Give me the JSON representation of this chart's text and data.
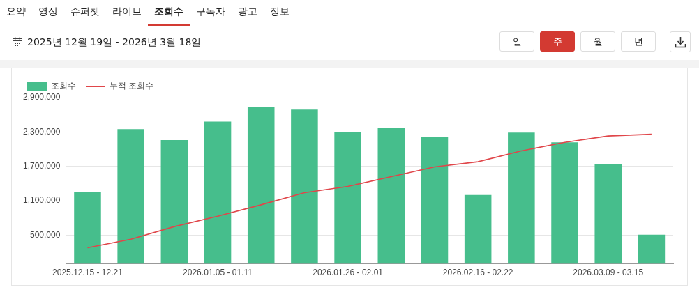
{
  "chart_data": {
    "type": "bar",
    "subtitle": "2025년 12월 19일 - 2026년 3월 18일",
    "annotations": [
      "요약",
      "영상",
      "슈퍼챗",
      "라이브",
      "조회수",
      "구독자",
      "광고",
      "정보",
      "일",
      "주",
      "월",
      "년"
    ],
    "categories": [
      "2025.12.15 - 12.21",
      null,
      null,
      "2026.01.05 - 01.11",
      null,
      null,
      "2026.01.26 - 02.01",
      null,
      null,
      "2026.02.16 - 02.22",
      null,
      null,
      "2026.03.09 - 03.15",
      null
    ],
    "series": [
      {
        "name": "조회수",
        "color": "#46be8c",
        "values": [
          1260000,
          2350000,
          2160000,
          2480000,
          2740000,
          2690000,
          2300000,
          2370000,
          2220000,
          1200000,
          2290000,
          2120000,
          1740000,
          510000
        ]
      },
      {
        "name": "누적 조회수",
        "type": "line",
        "color": "#e0464a",
        "values": [
          280000,
          430000,
          650000,
          830000,
          1030000,
          1240000,
          1350000,
          1520000,
          1690000,
          1780000,
          1970000,
          2120000,
          2230000,
          2260000
        ]
      }
    ],
    "ylim": [
      0,
      2900000
    ],
    "yticks": [
      {
        "value": 500000,
        "label": "500,000"
      },
      {
        "value": 1100000,
        "label": "1,100,000"
      },
      {
        "value": 1700000,
        "label": "1,700,000"
      },
      {
        "value": 2300000,
        "label": "2,300,000"
      },
      {
        "value": 2900000,
        "label": "2,900,000"
      }
    ],
    "grid": "y",
    "legend": "top left",
    "marker": "none",
    "line_style": "solid"
  }
}
